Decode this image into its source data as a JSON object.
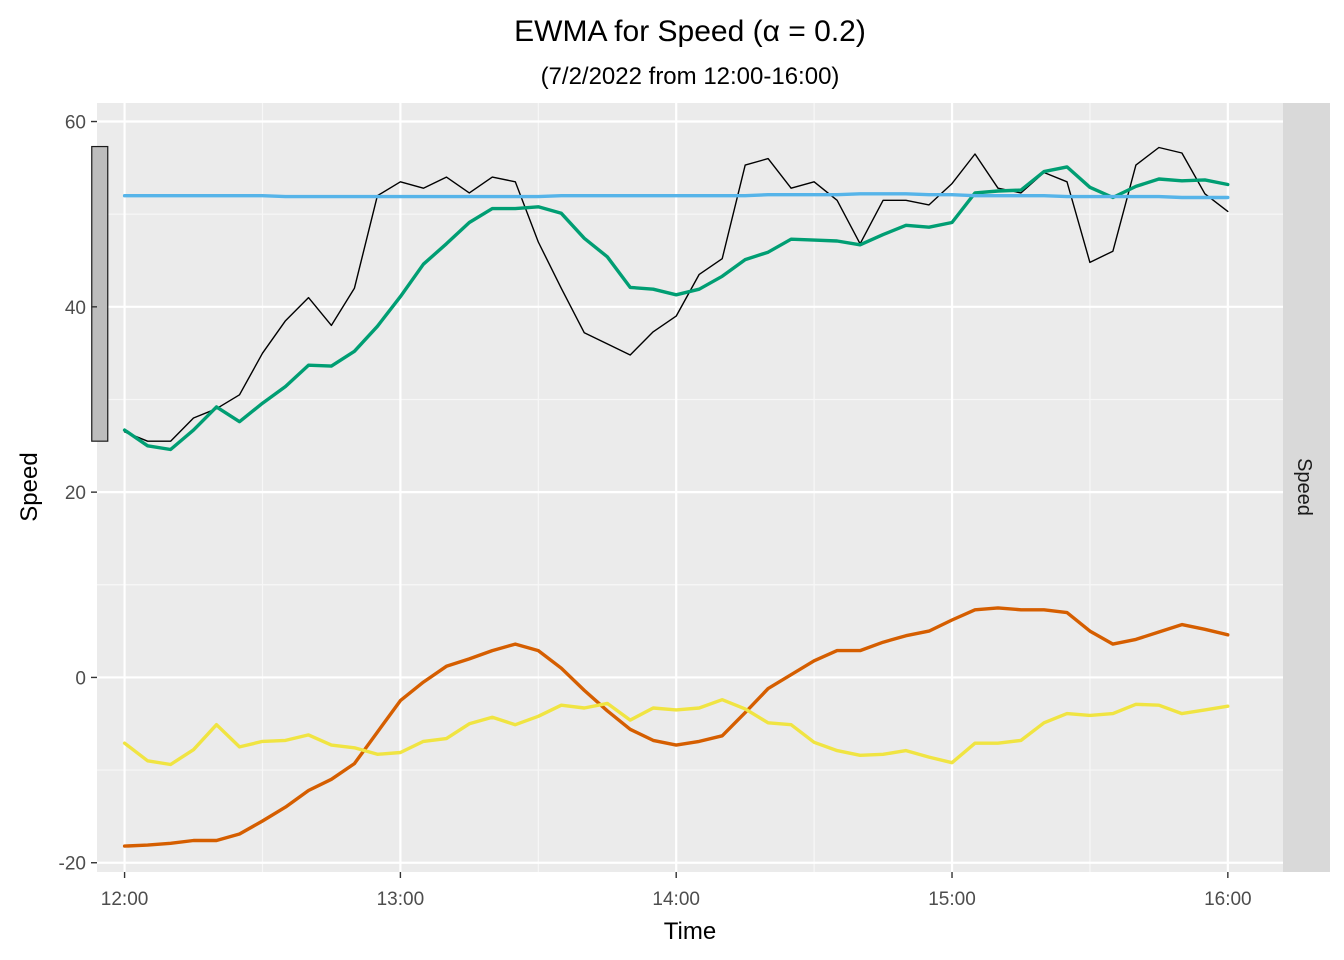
{
  "chart_data": {
    "type": "line",
    "title": "EWMA for Speed (α = 0.2)",
    "subtitle": "(7/2/2022 from 12:00-16:00)",
    "xlabel": "Time",
    "ylabel": "Speed",
    "facet_label": "Speed",
    "xlim": [
      -0.1,
      4.2
    ],
    "ylim": [
      -21,
      62
    ],
    "x_ticks": [
      {
        "v": 0,
        "label": "12:00"
      },
      {
        "v": 1,
        "label": "13:00"
      },
      {
        "v": 2,
        "label": "14:00"
      },
      {
        "v": 3,
        "label": "15:00"
      },
      {
        "v": 4,
        "label": "16:00"
      }
    ],
    "y_ticks": [
      {
        "v": -20,
        "label": "-20"
      },
      {
        "v": 0,
        "label": "0"
      },
      {
        "v": 20,
        "label": "20"
      },
      {
        "v": 40,
        "label": "40"
      },
      {
        "v": 60,
        "label": "60"
      }
    ],
    "x_minor": [
      0.5,
      1.5,
      2.5,
      3.5
    ],
    "y_minor": [
      -10,
      10,
      30,
      50
    ],
    "grid": true,
    "legend": "none",
    "range_bar": {
      "x": -0.09,
      "ymin": 25.5,
      "ymax": 57.3,
      "color": "#bdbdbd"
    },
    "x": [
      0,
      0.0833,
      0.1667,
      0.25,
      0.3333,
      0.4167,
      0.5,
      0.5833,
      0.6667,
      0.75,
      0.8333,
      0.9167,
      1,
      1.0833,
      1.1667,
      1.25,
      1.3333,
      1.4167,
      1.5,
      1.5833,
      1.6667,
      1.75,
      1.8333,
      1.9167,
      2,
      2.0833,
      2.1667,
      2.25,
      2.3333,
      2.4167,
      2.5,
      2.5833,
      2.6667,
      2.75,
      2.8333,
      2.9167,
      3,
      3.0833,
      3.1667,
      3.25,
      3.3333,
      3.4167,
      3.5,
      3.5833,
      3.6667,
      3.75,
      3.8333,
      3.9167,
      4
    ],
    "series": [
      {
        "color": "#000000",
        "width": 1.4,
        "values": [
          26.5,
          25.5,
          25.5,
          28,
          29,
          30.5,
          35,
          38.5,
          41,
          38,
          42,
          52,
          53.5,
          52.8,
          54,
          52.3,
          54,
          53.5,
          47,
          42,
          37.2,
          36,
          34.8,
          37.3,
          39,
          43.5,
          45.2,
          55.3,
          56,
          52.8,
          53.5,
          51.5,
          46.8,
          51.5,
          51.5,
          51,
          53.3,
          56.5,
          52.8,
          52.3,
          54.5,
          53.5,
          44.8,
          46,
          55.3,
          57.2,
          56.6,
          52.2,
          50.3
        ]
      },
      {
        "color": "#009E73",
        "width": 3.4,
        "values": [
          26.7,
          25,
          24.6,
          26.7,
          29.2,
          27.6,
          29.6,
          31.4,
          33.7,
          33.6,
          35.2,
          37.9,
          41.1,
          44.6,
          46.8,
          49.1,
          50.6,
          50.6,
          50.8,
          50.1,
          47.4,
          45.4,
          42.1,
          41.9,
          41.3,
          41.9,
          43.3,
          45.1,
          45.9,
          47.3,
          47.2,
          47.1,
          46.7,
          47.8,
          48.8,
          48.6,
          49.1,
          52.3,
          52.5,
          52.6,
          54.6,
          55.1,
          52.9,
          51.8,
          53,
          53.8,
          53.6,
          53.7,
          53.2
        ]
      },
      {
        "color": "#56B4E9",
        "width": 3.4,
        "values": [
          52,
          52,
          52,
          52,
          52,
          52,
          52,
          51.9,
          51.9,
          51.9,
          51.9,
          51.9,
          51.9,
          51.9,
          51.9,
          51.9,
          51.9,
          51.9,
          51.9,
          52,
          52,
          52,
          52,
          52,
          52,
          52,
          52,
          52,
          52.1,
          52.1,
          52.1,
          52.1,
          52.2,
          52.2,
          52.2,
          52.1,
          52.1,
          52,
          52,
          52,
          52,
          51.9,
          51.9,
          51.9,
          51.9,
          51.9,
          51.8,
          51.8,
          51.8
        ]
      },
      {
        "color": "#D55E00",
        "width": 3.4,
        "values": [
          -18.2,
          -18.1,
          -17.9,
          -17.6,
          -17.6,
          -16.9,
          -15.5,
          -14,
          -12.2,
          -11,
          -9.3,
          -5.9,
          -2.5,
          -0.5,
          1.2,
          2,
          2.9,
          3.6,
          2.9,
          1,
          -1.4,
          -3.6,
          -5.6,
          -6.8,
          -7.3,
          -6.9,
          -6.3,
          -3.8,
          -1.2,
          0.3,
          1.8,
          2.9,
          2.9,
          3.8,
          4.5,
          5,
          6.2,
          7.3,
          7.5,
          7.3,
          7.3,
          7,
          5,
          3.6,
          4.1,
          4.9,
          5.7,
          5.2,
          4.6
        ]
      },
      {
        "color": "#F0E442",
        "width": 3.4,
        "values": [
          -7.1,
          -9,
          -9.4,
          -7.8,
          -5.1,
          -7.5,
          -6.9,
          -6.8,
          -6.2,
          -7.3,
          -7.6,
          -8.3,
          -8.1,
          -6.9,
          -6.6,
          -5,
          -4.3,
          -5.1,
          -4.2,
          -3,
          -3.3,
          -2.8,
          -4.6,
          -3.3,
          -3.5,
          -3.3,
          -2.4,
          -3.4,
          -4.9,
          -5.1,
          -7,
          -7.9,
          -8.4,
          -8.3,
          -7.9,
          -8.6,
          -9.2,
          -7.1,
          -7.1,
          -6.8,
          -4.9,
          -3.9,
          -4.1,
          -3.9,
          -2.9,
          -3,
          -3.9,
          -3.5,
          -3.1
        ]
      }
    ]
  }
}
